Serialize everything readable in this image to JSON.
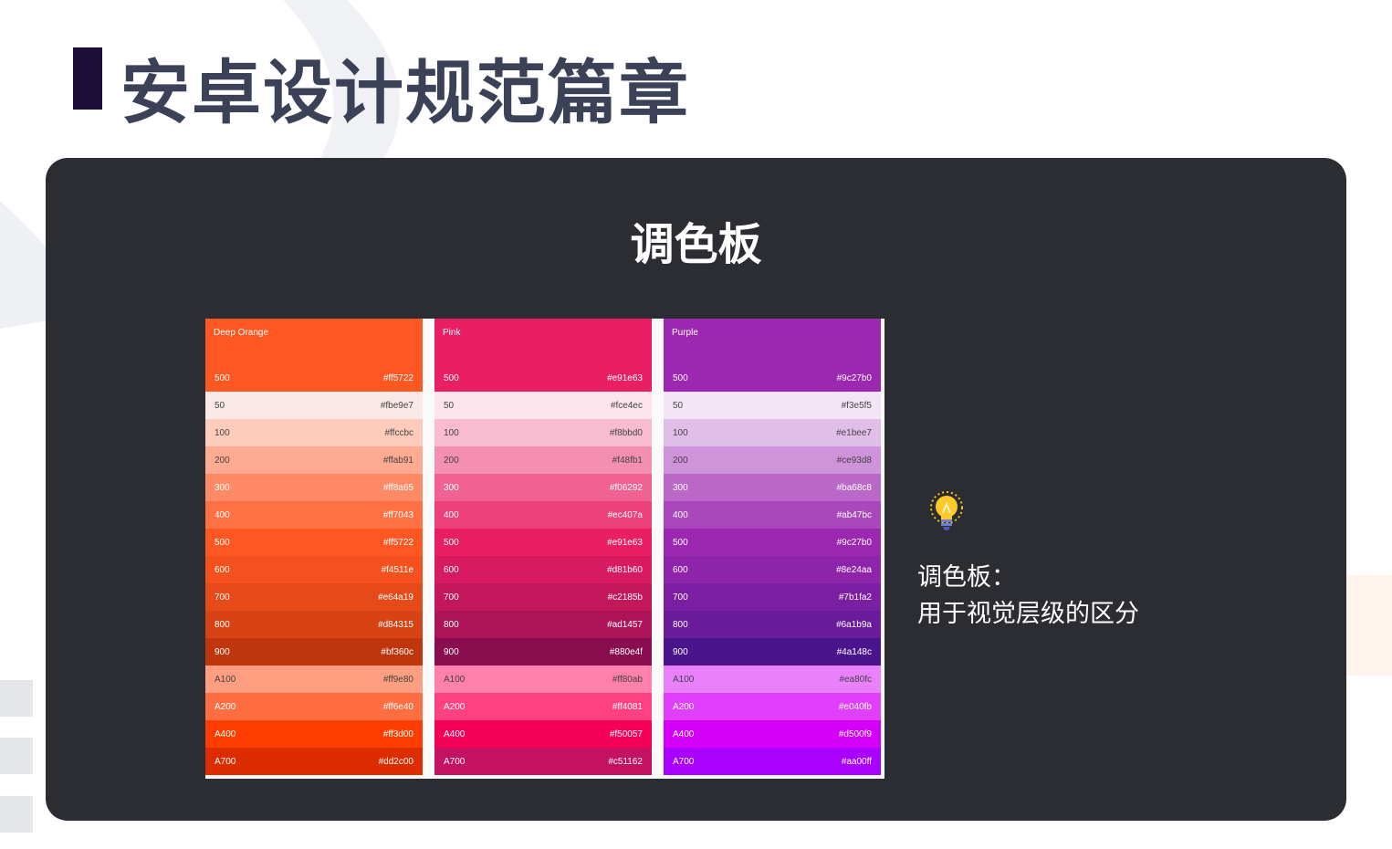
{
  "page_title": "安卓设计规范篇章",
  "card_title": "调色板",
  "tip": {
    "icon": "lightbulb-icon",
    "line1": "调色板：",
    "line2": "用于视觉层级的区分"
  },
  "palettes": [
    {
      "name": "Deep Orange",
      "primary": {
        "shade": "500",
        "hex": "#ff5722"
      },
      "rows": [
        [
          "50",
          "#fbe9e7"
        ],
        [
          "100",
          "#ffccbc"
        ],
        [
          "200",
          "#ffab91"
        ],
        [
          "300",
          "#ff8a65"
        ],
        [
          "400",
          "#ff7043"
        ],
        [
          "500",
          "#ff5722"
        ],
        [
          "600",
          "#f4511e"
        ],
        [
          "700",
          "#e64a19"
        ],
        [
          "800",
          "#d84315"
        ],
        [
          "900",
          "#bf360c"
        ],
        [
          "A100",
          "#ff9e80"
        ],
        [
          "A200",
          "#ff6e40"
        ],
        [
          "A400",
          "#ff3d00"
        ],
        [
          "A700",
          "#dd2c00"
        ]
      ]
    },
    {
      "name": "Pink",
      "primary": {
        "shade": "500",
        "hex": "#e91e63"
      },
      "rows": [
        [
          "50",
          "#fce4ec"
        ],
        [
          "100",
          "#f8bbd0"
        ],
        [
          "200",
          "#f48fb1"
        ],
        [
          "300",
          "#f06292"
        ],
        [
          "400",
          "#ec407a"
        ],
        [
          "500",
          "#e91e63"
        ],
        [
          "600",
          "#d81b60"
        ],
        [
          "700",
          "#c2185b"
        ],
        [
          "800",
          "#ad1457"
        ],
        [
          "900",
          "#880e4f"
        ],
        [
          "A100",
          "#ff80ab"
        ],
        [
          "A200",
          "#ff4081"
        ],
        [
          "A400",
          "#f50057"
        ],
        [
          "A700",
          "#c51162"
        ]
      ]
    },
    {
      "name": "Purple",
      "primary": {
        "shade": "500",
        "hex": "#9c27b0"
      },
      "rows": [
        [
          "50",
          "#f3e5f5"
        ],
        [
          "100",
          "#e1bee7"
        ],
        [
          "200",
          "#ce93d8"
        ],
        [
          "300",
          "#ba68c8"
        ],
        [
          "400",
          "#ab47bc"
        ],
        [
          "500",
          "#9c27b0"
        ],
        [
          "600",
          "#8e24aa"
        ],
        [
          "700",
          "#7b1fa2"
        ],
        [
          "800",
          "#6a1b9a"
        ],
        [
          "900",
          "#4a148c"
        ],
        [
          "A100",
          "#ea80fc"
        ],
        [
          "A200",
          "#e040fb"
        ],
        [
          "A400",
          "#d500f9"
        ],
        [
          "A700",
          "#aa00ff"
        ]
      ]
    }
  ]
}
